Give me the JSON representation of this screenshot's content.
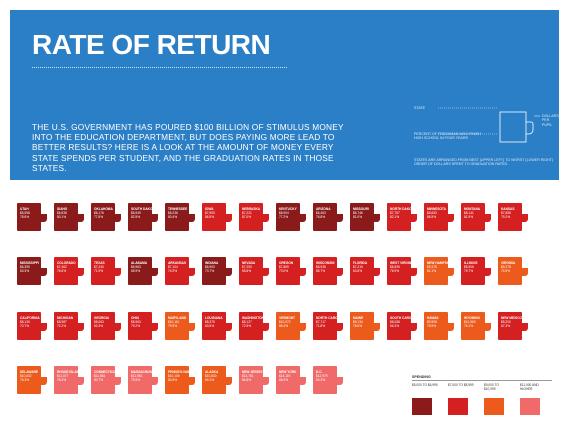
{
  "header": {
    "title": "RATE OF RETURN",
    "intro": "THE U.S. GOVERNMENT HAS POURED $100 BILLION OF STIMULUS MONEY INTO THE EDUCATION DEPARTMENT, BUT DOES PAYING MORE LEAD TO BETTER RESULTS? HERE IS A LOOK AT THE AMOUNT OF MONEY EVERY STATE SPENDS PER STUDENT, AND THE GRADUATION RATES IN THOSE STATES.",
    "legend_state": "STATE",
    "legend_percent": "PERCENT OF FRESHMAN WHO FINISH HIGH SCHOOL IN FOUR YEARS",
    "legend_dollars": "DOLLARS PER PUPIL",
    "legend_note": "STATES ARE ARRANGED FROM BEST (UPPER LEFT) TO WORST (LOWER RIGHT) ORDER OF DOLLARS SPENT TO GRADUATION RATES.",
    "colors": {
      "header_bg": "#2b7fc6"
    }
  },
  "spending_legend": {
    "title": "SPENDING",
    "items": [
      {
        "label": "$5,000 TO $6,999",
        "color": "#8b1a1a"
      },
      {
        "label": "$7,000 TO $8,999",
        "color": "#d42020"
      },
      {
        "label": "$9,000 TO $10,999",
        "color": "#ec5a1c"
      },
      {
        "label": "$11,000 AND HIGHER",
        "color": "#f06a6a"
      }
    ]
  },
  "chart_data": {
    "type": "table",
    "columns": [
      "state",
      "spending_per_pupil",
      "graduation_rate"
    ],
    "rows": [
      {
        "state": "UTAH",
        "spend": "$5,598",
        "grad": "78.6%",
        "color": "#8b1a1a"
      },
      {
        "state": "IDAHO",
        "spend": "$6,838",
        "grad": "80.1%",
        "color": "#8b1a1a"
      },
      {
        "state": "OKLAHOMA",
        "spend": "$6,176",
        "grad": "77.8%",
        "color": "#8b1a1a"
      },
      {
        "state": "SOUTH DAKOTA",
        "spend": "$6,949",
        "grad": "82.5%",
        "color": "#8b1a1a"
      },
      {
        "state": "TENNESSEE",
        "spend": "$6,236",
        "grad": "80.4%",
        "color": "#8b1a1a"
      },
      {
        "state": "IOWA",
        "spend": "$7,993",
        "grad": "86.5%",
        "color": "#d42020"
      },
      {
        "state": "NEBRASKA",
        "spend": "$7,221",
        "grad": "87.0%",
        "color": "#d42020"
      },
      {
        "state": "KENTUCKY",
        "spend": "$6,904",
        "grad": "77.2%",
        "color": "#8b1a1a"
      },
      {
        "state": "ARIZONA",
        "spend": "$6,463",
        "grad": "76.8%",
        "color": "#8b1a1a"
      },
      {
        "state": "MISSOURI",
        "spend": "$6,746",
        "grad": "81.0%",
        "color": "#8b1a1a"
      },
      {
        "state": "NORTH DAKOTA",
        "spend": "$7,757",
        "grad": "82.1%",
        "color": "#d42020"
      },
      {
        "state": "MINNESOTA",
        "spend": "$8,653",
        "grad": "86.5%",
        "color": "#d42020"
      },
      {
        "state": "MONTANA",
        "spend": "$8,141",
        "grad": "81.9%",
        "color": "#d42020"
      },
      {
        "state": "KANSAS",
        "spend": "$7,858",
        "grad": "79.2%",
        "color": "#d42020"
      },
      {
        "state": "MISSISSIPPI",
        "spend": "$6,395",
        "grad": "63.3%",
        "color": "#8b1a1a"
      },
      {
        "state": "COLORADO",
        "spend": "$7,462",
        "grad": "76.6%",
        "color": "#d42020"
      },
      {
        "state": "TEXAS",
        "spend": "$7,240",
        "grad": "71.9%",
        "color": "#d42020"
      },
      {
        "state": "ALABAMA",
        "spend": "$6,963",
        "grad": "65.9%",
        "color": "#8b1a1a"
      },
      {
        "state": "ARKANSAS",
        "spend": "$7,104",
        "grad": "74.9%",
        "color": "#d42020"
      },
      {
        "state": "INDIANA",
        "spend": "$6,900",
        "grad": "73.7%",
        "color": "#8b1a1a"
      },
      {
        "state": "NEVADA",
        "spend": "$7,250",
        "grad": "55.8%",
        "color": "#d42020"
      },
      {
        "state": "OREGON",
        "spend": "$7,869",
        "grad": "73.0%",
        "color": "#d42020"
      },
      {
        "state": "WISCONSIN",
        "spend": "$8,936",
        "grad": "86.7%",
        "color": "#d42020"
      },
      {
        "state": "FLORIDA",
        "spend": "$7,215",
        "grad": "63.6%",
        "color": "#d42020"
      },
      {
        "state": "WEST VIRGINIA",
        "spend": "$8,695",
        "grad": "76.9%",
        "color": "#d42020"
      },
      {
        "state": "NEW HAMPSHIRE",
        "spend": "$9,375",
        "grad": "81.1%",
        "color": "#ec5a1c"
      },
      {
        "state": "ILLINOIS",
        "spend": "$8,906",
        "grad": "79.7%",
        "color": "#d42020"
      },
      {
        "state": "VIRGINIA",
        "spend": "$9,278",
        "grad": "74.5%",
        "color": "#ec5a1c"
      },
      {
        "state": "CALIFORNIA",
        "spend": "$8,130",
        "grad": "70.7%",
        "color": "#d42020"
      },
      {
        "state": "MICHIGAN",
        "spend": "$8,987",
        "grad": "72.2%",
        "color": "#d42020"
      },
      {
        "state": "GEORGIA",
        "spend": "$8,063",
        "grad": "62.4%",
        "color": "#d42020"
      },
      {
        "state": "OHIO",
        "spend": "$8,963",
        "grad": "79.2%",
        "color": "#d42020"
      },
      {
        "state": "MARYLAND",
        "spend": "$10,110",
        "grad": "79.9%",
        "color": "#ec5a1c"
      },
      {
        "state": "LOUISIANA",
        "spend": "$8,375",
        "grad": "63.5%",
        "color": "#d42020"
      },
      {
        "state": "WASHINGTON",
        "spend": "$8,127",
        "grad": "72.9%",
        "color": "#d42020"
      },
      {
        "state": "VERMONT",
        "spend": "$10,072",
        "grad": "85.4%",
        "color": "#ec5a1c"
      },
      {
        "state": "NORTH CAROLINA",
        "spend": "$7,717",
        "grad": "71.8%",
        "color": "#d42020"
      },
      {
        "state": "MAINE",
        "spend": "$9,134",
        "grad": "78.6%",
        "color": "#ec5a1c"
      },
      {
        "state": "SOUTH CAROLINA",
        "spend": "$8,088",
        "grad": "66.3%",
        "color": "#d42020"
      },
      {
        "state": "HAWAII",
        "spend": "$9,908",
        "grad": "75.5%",
        "color": "#ec5a1c"
      },
      {
        "state": "WYOMING",
        "spend": "$10,563",
        "grad": "76.1%",
        "color": "#ec5a1c"
      },
      {
        "state": "NEW MEXICO",
        "spend": "$8,200",
        "grad": "67.3%",
        "color": "#d42020"
      },
      {
        "state": "DELAWARE",
        "spend": "$10,832",
        "grad": "76.3%",
        "color": "#ec5a1c"
      },
      {
        "state": "RHODE ISLAND",
        "spend": "$11,077",
        "grad": "78.4%",
        "color": "#f06a6a"
      },
      {
        "state": "CONNECTICUT",
        "spend": "$11,861",
        "grad": "80.7%",
        "color": "#f06a6a"
      },
      {
        "state": "MASSACHUSETTS",
        "spend": "$11,981",
        "grad": "79.5%",
        "color": "#f06a6a"
      },
      {
        "state": "PENNSYLVANIA",
        "spend": "$10,105",
        "grad": "83.5%",
        "color": "#ec5a1c"
      },
      {
        "state": "ALASKA",
        "spend": "$10,830",
        "grad": "69.1%",
        "color": "#ec5a1c"
      },
      {
        "state": "NEW JERSEY",
        "spend": "$13,781",
        "grad": "84.8%",
        "color": "#f06a6a"
      },
      {
        "state": "NEW YORK",
        "spend": "$14,119",
        "grad": "68.4%",
        "color": "#f06a6a"
      },
      {
        "state": "D.C.",
        "spend": "$12,979",
        "grad": "60.3%",
        "color": "#f06a6a"
      }
    ]
  }
}
